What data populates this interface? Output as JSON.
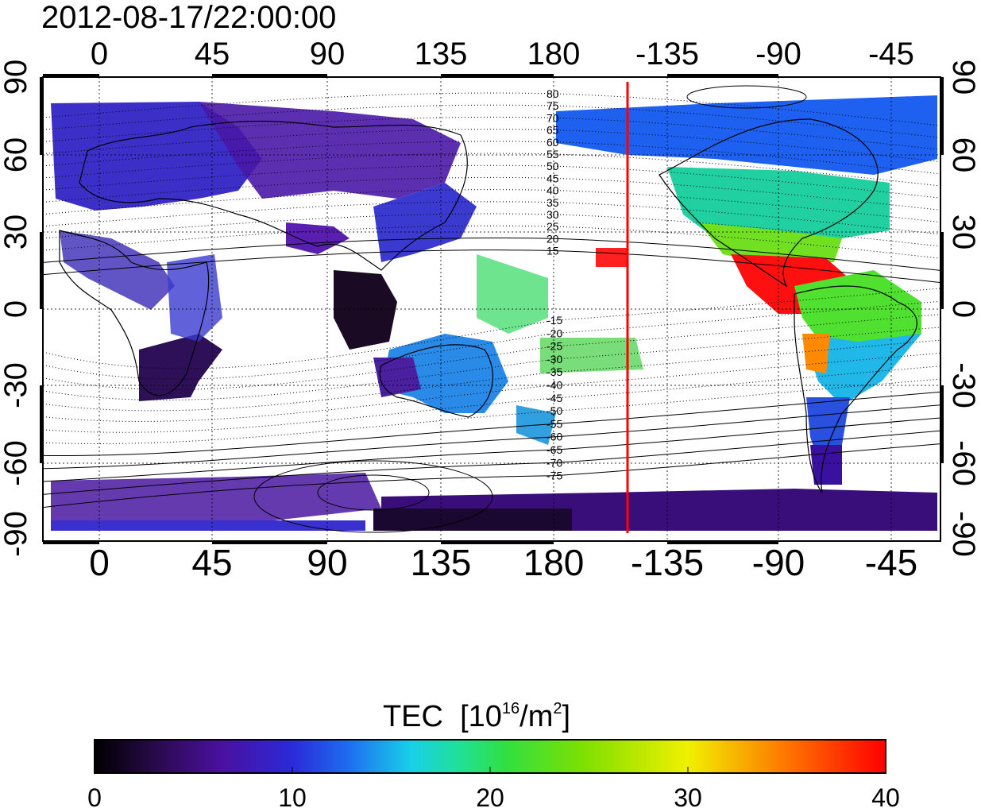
{
  "title": "2012-08-17/22:00:00",
  "map": {
    "x_ticks": [
      "0",
      "45",
      "90",
      "135",
      "180",
      "-135",
      "-90",
      "-45"
    ],
    "y_ticks": [
      "90",
      "60",
      "30",
      "0",
      "-30",
      "-60",
      "-90"
    ],
    "contour_labels_north": [
      "80",
      "75",
      "70",
      "65",
      "60",
      "55",
      "50",
      "45",
      "40",
      "35",
      "30",
      "25",
      "20",
      "15"
    ],
    "contour_labels_south": [
      "-15",
      "-20",
      "-25",
      "-30",
      "-35",
      "-40",
      "-45",
      "-50",
      "-55",
      "-60",
      "-65",
      "-70",
      "-75"
    ],
    "red_line_longitude": -150
  },
  "colorbar": {
    "title_main": "TEC",
    "title_unit_a": "[10",
    "title_exp_a": "16",
    "title_unit_b": "/m",
    "title_exp_b": "2",
    "title_unit_c": "]",
    "tick_labels": [
      "0",
      "10",
      "20",
      "30",
      "40"
    ],
    "range": [
      0,
      40
    ]
  },
  "colors": {
    "red_line": "#ff0000",
    "colormap": [
      "#000000",
      "#3a0a6e",
      "#4a10a0",
      "#2a2ad8",
      "#1e6cf0",
      "#18c8e8",
      "#20e080",
      "#40e020",
      "#a0e000",
      "#f0f000",
      "#ff8000",
      "#ff2020",
      "#ff0000"
    ]
  }
}
